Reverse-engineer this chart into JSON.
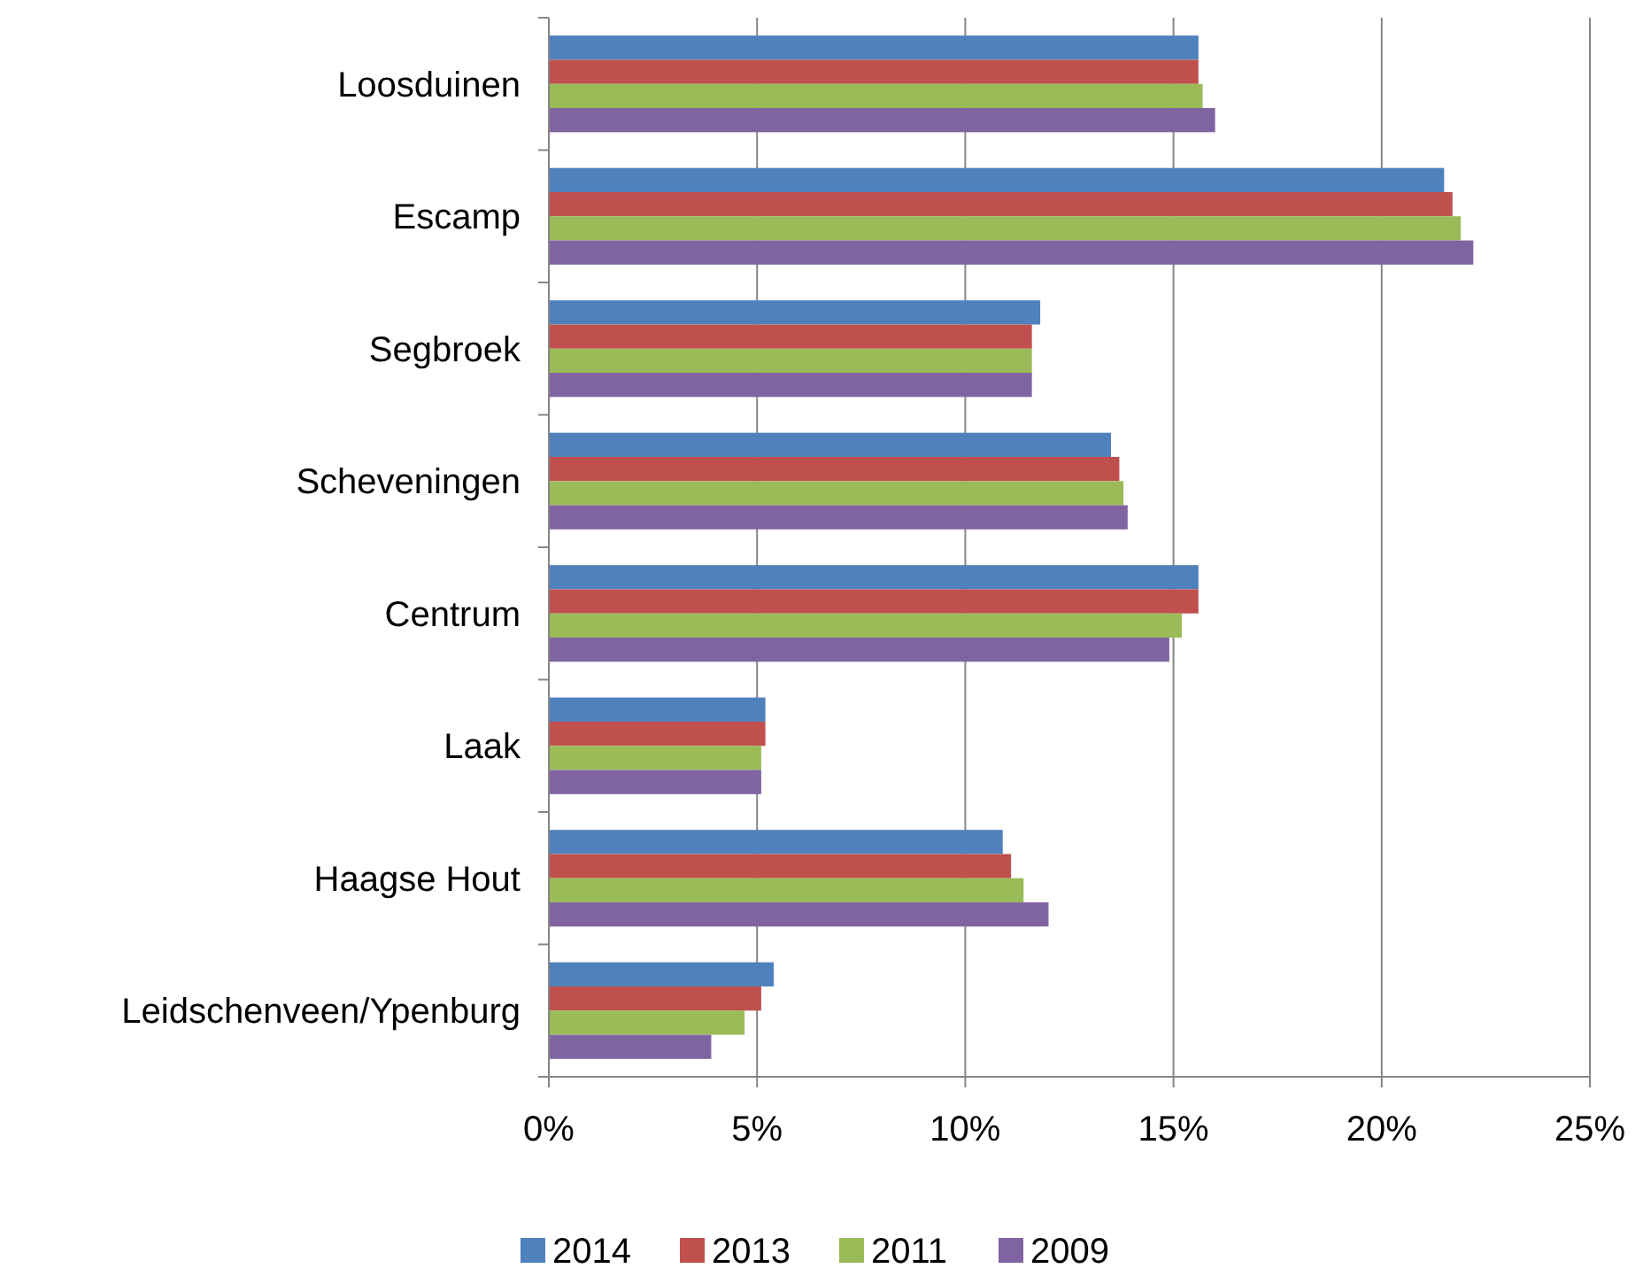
{
  "chart_data": {
    "type": "bar",
    "orientation": "horizontal",
    "categories": [
      "Loosduinen",
      "Escamp",
      "Segbroek",
      "Scheveningen",
      "Centrum",
      "Laak",
      "Haagse Hout",
      "Leidschenveen/Ypenburg"
    ],
    "series": [
      {
        "name": "2014",
        "color": "#4f81bd",
        "values": [
          15.6,
          21.5,
          11.8,
          13.5,
          15.6,
          5.2,
          10.9,
          5.4
        ]
      },
      {
        "name": "2013",
        "color": "#c0504d",
        "values": [
          15.6,
          21.7,
          11.6,
          13.7,
          15.6,
          5.2,
          11.1,
          5.1
        ]
      },
      {
        "name": "2011",
        "color": "#9bbb59",
        "values": [
          15.7,
          21.9,
          11.6,
          13.8,
          15.2,
          5.1,
          11.4,
          4.7
        ]
      },
      {
        "name": "2009",
        "color": "#8064a2",
        "values": [
          16.0,
          22.2,
          11.6,
          13.9,
          14.9,
          5.1,
          12.0,
          3.9
        ]
      }
    ],
    "xlim": [
      0,
      25
    ],
    "xticks": [
      {
        "value": 0,
        "label": "0%"
      },
      {
        "value": 5,
        "label": "5%"
      },
      {
        "value": 10,
        "label": "10%"
      },
      {
        "value": 15,
        "label": "15%"
      },
      {
        "value": 20,
        "label": "20%"
      },
      {
        "value": 25,
        "label": "25%"
      }
    ],
    "grid": "x",
    "legend": "bottom"
  }
}
